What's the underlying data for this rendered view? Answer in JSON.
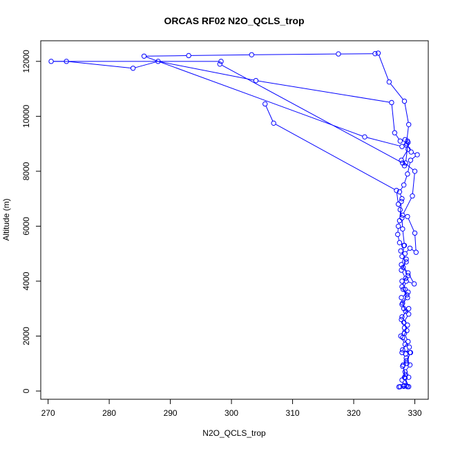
{
  "chart_data": {
    "type": "line",
    "title": "ORCAS RF02 N2O_QCLS_trop",
    "xlabel": "N2O_QCLS_trop",
    "ylabel": "Altitude (m)",
    "xlim": [
      268.8,
      332.2
    ],
    "ylim": [
      -300,
      12750
    ],
    "x_ticks": [
      270,
      280,
      290,
      300,
      310,
      320,
      330
    ],
    "y_ticks": [
      0,
      2000,
      4000,
      6000,
      8000,
      10000,
      12000
    ],
    "grid": false,
    "legend": "none",
    "series_color": "#0000ff",
    "series": [
      {
        "points": [
          [
            327.4,
            150
          ],
          [
            328.2,
            170
          ],
          [
            328.6,
            190
          ],
          [
            329.0,
            160
          ],
          [
            328.4,
            480
          ],
          [
            328.1,
            950
          ],
          [
            328.7,
            1000
          ],
          [
            329.2,
            1400
          ],
          [
            328.0,
            1500
          ],
          [
            328.9,
            1800
          ],
          [
            328.3,
            2100
          ],
          [
            328.8,
            2400
          ],
          [
            327.9,
            2700
          ],
          [
            329.0,
            3000
          ],
          [
            328.2,
            3000
          ],
          [
            327.8,
            3400
          ],
          [
            328.9,
            3600
          ],
          [
            328.4,
            3700
          ],
          [
            327.9,
            4000
          ],
          [
            328.9,
            4200
          ],
          [
            328.1,
            4500
          ],
          [
            328.6,
            4800
          ],
          [
            327.7,
            5100
          ],
          [
            328.2,
            5300
          ],
          [
            327.5,
            5400
          ],
          [
            327.2,
            5700
          ],
          [
            327.3,
            6000
          ],
          [
            327.5,
            6200
          ],
          [
            327.8,
            6900
          ],
          [
            327.9,
            7000
          ],
          [
            327.5,
            7250
          ],
          [
            328.2,
            7500
          ],
          [
            328.8,
            7900
          ],
          [
            329.3,
            8400
          ],
          [
            330.4,
            8600
          ],
          [
            329.4,
            8700
          ],
          [
            328.7,
            9000
          ],
          [
            328.4,
            9150
          ],
          [
            327.6,
            9100
          ],
          [
            326.7,
            9400
          ],
          [
            326.2,
            10500
          ],
          [
            304.0,
            11300
          ],
          [
            288.0,
            12000
          ],
          [
            283.9,
            11750
          ],
          [
            273.0,
            12000
          ],
          [
            270.5,
            12000
          ],
          [
            298.3,
            12000
          ],
          [
            298.1,
            11900
          ],
          [
            328.0,
            8300
          ]
        ]
      },
      {
        "points": [
          [
            328.3,
            8200
          ],
          [
            328.5,
            8300
          ],
          [
            328.9,
            9050
          ],
          [
            328.6,
            8950
          ],
          [
            329.0,
            9700
          ],
          [
            328.3,
            10550
          ],
          [
            325.8,
            11250
          ],
          [
            324.0,
            12300
          ],
          [
            323.5,
            12280
          ],
          [
            317.5,
            12270
          ],
          [
            303.3,
            12240
          ],
          [
            293.0,
            12210
          ],
          [
            285.7,
            12190
          ],
          [
            321.8,
            9250
          ],
          [
            327.9,
            8900
          ],
          [
            328.8,
            9100
          ],
          [
            328.9,
            8800
          ],
          [
            327.8,
            8400
          ],
          [
            330.0,
            8000
          ],
          [
            329.6,
            7100
          ],
          [
            328.0,
            6400
          ],
          [
            328.8,
            6350
          ],
          [
            330.0,
            5750
          ],
          [
            330.2,
            5050
          ],
          [
            329.2,
            5200
          ],
          [
            328.4,
            5000
          ],
          [
            327.8,
            4600
          ],
          [
            328.9,
            4300
          ],
          [
            329.9,
            3900
          ],
          [
            328.6,
            4000
          ],
          [
            328.1,
            3700
          ],
          [
            328.8,
            3400
          ],
          [
            327.9,
            3150
          ],
          [
            329.0,
            2800
          ],
          [
            328.2,
            2500
          ],
          [
            328.7,
            2200
          ],
          [
            328.0,
            1950
          ],
          [
            329.1,
            1600
          ],
          [
            328.5,
            1350
          ],
          [
            329.3,
            1400
          ],
          [
            328.6,
            1100
          ],
          [
            329.2,
            950
          ],
          [
            328.4,
            700
          ],
          [
            329.0,
            500
          ],
          [
            328.3,
            500
          ],
          [
            328.8,
            160
          ],
          [
            327.6,
            160
          ]
        ]
      },
      {
        "points": [
          [
            305.5,
            10450
          ],
          [
            306.9,
            9750
          ],
          [
            327.0,
            7300
          ],
          [
            327.3,
            6800
          ],
          [
            327.6,
            6600
          ],
          [
            327.9,
            6300
          ],
          [
            328.0,
            5900
          ],
          [
            328.3,
            5300
          ],
          [
            327.9,
            4900
          ],
          [
            328.6,
            4700
          ],
          [
            327.8,
            4400
          ],
          [
            328.5,
            4100
          ],
          [
            327.9,
            3800
          ],
          [
            328.7,
            3500
          ],
          [
            328.0,
            3200
          ],
          [
            328.5,
            2900
          ],
          [
            327.8,
            2600
          ],
          [
            328.3,
            2300
          ],
          [
            327.7,
            2000
          ],
          [
            328.4,
            1700
          ],
          [
            327.9,
            1400
          ],
          [
            328.6,
            1200
          ],
          [
            328.0,
            900
          ],
          [
            328.5,
            600
          ],
          [
            327.9,
            400
          ],
          [
            328.2,
            200
          ]
        ]
      }
    ]
  }
}
